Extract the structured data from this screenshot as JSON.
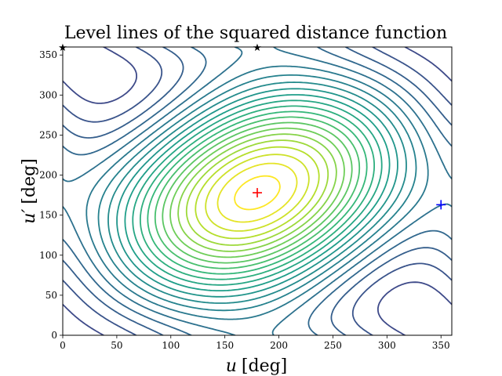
{
  "chart_data": {
    "type": "contour",
    "title": "Level lines of the squared distance function",
    "xlabel": {
      "var": "u",
      "unit": "[deg]"
    },
    "ylabel": {
      "var": "u′",
      "unit": "[deg]"
    },
    "xlim": [
      0,
      360
    ],
    "ylim": [
      0,
      360
    ],
    "xticks": [
      0,
      50,
      100,
      150,
      200,
      250,
      300,
      350
    ],
    "yticks": [
      0,
      50,
      100,
      150,
      200,
      250,
      300,
      350
    ],
    "colormap": "viridis",
    "grid": false,
    "maximum_region_center": [
      180,
      178
    ],
    "markers": [
      {
        "symbol": "+",
        "x": 180,
        "y": 178,
        "color": "#ff0000"
      },
      {
        "symbol": "+",
        "x": 350,
        "y": 163,
        "color": "#0000ff"
      },
      {
        "symbol": "★",
        "x": 0,
        "y": 360,
        "color": "#000000"
      },
      {
        "symbol": "★",
        "x": 180,
        "y": 360,
        "color": "#000000"
      }
    ]
  }
}
